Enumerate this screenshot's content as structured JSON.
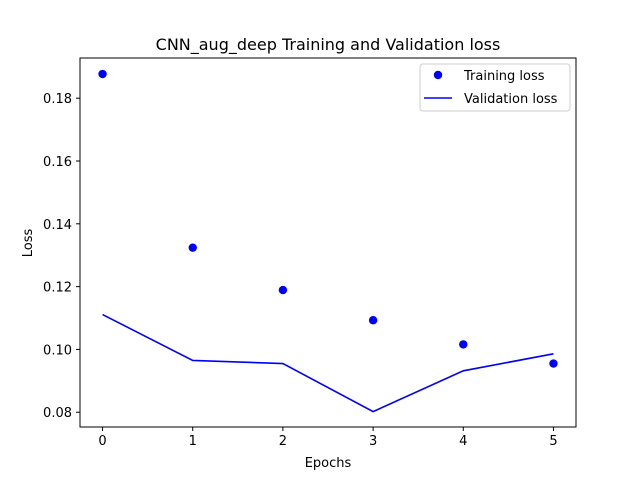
{
  "chart_data": {
    "type": "line",
    "title": "CNN_aug_deep Training and Validation loss",
    "xlabel": "Epochs",
    "ylabel": "Loss",
    "x": [
      0,
      1,
      2,
      3,
      4,
      5
    ],
    "xticks": [
      "0",
      "1",
      "2",
      "3",
      "4",
      "5"
    ],
    "yticks": [
      "0.08",
      "0.10",
      "0.12",
      "0.14",
      "0.16",
      "0.18"
    ],
    "xlim": [
      -0.25,
      5.25
    ],
    "ylim": [
      0.0753,
      0.1928
    ],
    "grid": false,
    "legend_position": "top-right",
    "series": [
      {
        "name": "Training loss",
        "style": "scatter",
        "color": "#0000ff",
        "values": [
          0.1877,
          0.1324,
          0.1189,
          0.1093,
          0.1016,
          0.0955
        ]
      },
      {
        "name": "Validation loss",
        "style": "line",
        "color": "#0000ff",
        "values": [
          0.1111,
          0.0965,
          0.0955,
          0.0802,
          0.0932,
          0.0986
        ]
      }
    ]
  }
}
